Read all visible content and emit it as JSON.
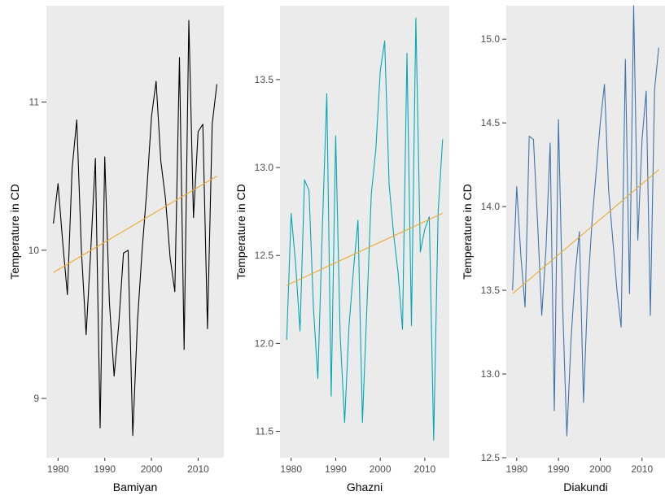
{
  "chart_data": [
    {
      "type": "line",
      "xlabel": "Bamiyan",
      "ylabel": "Temperature in CD",
      "xticks": [
        1980,
        1990,
        2000,
        2010
      ],
      "yticks": [
        9,
        10,
        11
      ],
      "xlim": [
        1977.5,
        2015.5
      ],
      "ylim": [
        8.6,
        11.65
      ],
      "grid": false,
      "colors": {
        "series": "#000000",
        "trend": "#F0A830",
        "panel": "#EBEBEB"
      },
      "series": [
        {
          "x": [
            1979,
            1980,
            1981,
            1982,
            1983,
            1984,
            1985,
            1986,
            1987,
            1988,
            1989,
            1990,
            1991,
            1992,
            1993,
            1994,
            1995,
            1996,
            1997,
            1998,
            1999,
            2000,
            2001,
            2002,
            2003,
            2004,
            2005,
            2006,
            2007,
            2008,
            2009,
            2010,
            2011,
            2012,
            2013,
            2014
          ],
          "values": [
            10.18,
            10.45,
            10.05,
            9.7,
            10.55,
            10.88,
            10.0,
            9.43,
            10.0,
            10.62,
            8.8,
            10.63,
            9.65,
            9.15,
            9.5,
            9.98,
            10.0,
            8.75,
            9.52,
            10.0,
            10.4,
            10.9,
            11.14,
            10.6,
            10.35,
            9.95,
            9.72,
            11.3,
            9.33,
            11.55,
            10.22,
            10.8,
            10.85,
            9.47,
            10.85,
            11.12
          ]
        },
        {
          "x": [
            1979,
            2014
          ],
          "values": [
            9.85,
            10.5
          ]
        }
      ]
    },
    {
      "type": "line",
      "xlabel": "Ghazni",
      "ylabel": "Temperature in CD",
      "xticks": [
        1980,
        1990,
        2000,
        2010
      ],
      "yticks": [
        "11.5",
        "12.0",
        "12.5",
        "13.0",
        "13.5"
      ],
      "xlim": [
        1977.5,
        2015.5
      ],
      "ylim": [
        11.35,
        13.92
      ],
      "grid": false,
      "colors": {
        "series": "#00A9B5",
        "trend": "#F0A830",
        "panel": "#EBEBEB"
      },
      "series": [
        {
          "x": [
            1979,
            1980,
            1981,
            1982,
            1983,
            1984,
            1985,
            1986,
            1987,
            1988,
            1989,
            1990,
            1991,
            1992,
            1993,
            1994,
            1995,
            1996,
            1997,
            1998,
            1999,
            2000,
            2001,
            2002,
            2003,
            2004,
            2005,
            2006,
            2007,
            2008,
            2009,
            2010,
            2011,
            2012,
            2013,
            2014
          ],
          "values": [
            12.02,
            12.74,
            12.45,
            12.07,
            12.93,
            12.87,
            12.2,
            11.8,
            12.65,
            13.42,
            11.7,
            13.18,
            12.05,
            11.55,
            12.1,
            12.42,
            12.7,
            11.55,
            12.2,
            12.85,
            13.1,
            13.55,
            13.72,
            12.9,
            12.62,
            12.4,
            12.08,
            13.65,
            12.1,
            13.85,
            12.52,
            12.65,
            12.72,
            11.45,
            12.75,
            13.16
          ]
        },
        {
          "x": [
            1979,
            2014
          ],
          "values": [
            12.33,
            12.74
          ]
        }
      ]
    },
    {
      "type": "line",
      "xlabel": "Diakundi",
      "ylabel": "Temperature in CD",
      "xticks": [
        1980,
        1990,
        2000,
        2010
      ],
      "yticks": [
        "12.5",
        "13.0",
        "13.5",
        "14.0",
        "14.5",
        "15.0"
      ],
      "xlim": [
        1977.5,
        2015.5
      ],
      "ylim": [
        12.5,
        15.2
      ],
      "grid": false,
      "colors": {
        "series": "#3E74AA",
        "trend": "#F0A830",
        "panel": "#EBEBEB"
      },
      "series": [
        {
          "x": [
            1979,
            1980,
            1981,
            1982,
            1983,
            1984,
            1985,
            1986,
            1987,
            1988,
            1989,
            1990,
            1991,
            1992,
            1993,
            1994,
            1995,
            1996,
            1997,
            1998,
            1999,
            2000,
            2001,
            2002,
            2003,
            2004,
            2005,
            2006,
            2007,
            2008,
            2009,
            2010,
            2011,
            2012,
            2013,
            2014
          ],
          "values": [
            13.5,
            14.12,
            13.7,
            13.4,
            14.42,
            14.4,
            13.9,
            13.35,
            13.75,
            14.38,
            12.78,
            14.52,
            13.4,
            12.63,
            13.2,
            13.6,
            13.85,
            12.83,
            13.5,
            13.9,
            14.2,
            14.5,
            14.73,
            14.1,
            13.8,
            13.5,
            13.28,
            14.88,
            13.48,
            15.2,
            13.8,
            14.4,
            14.69,
            13.35,
            14.7,
            14.95
          ]
        },
        {
          "x": [
            1979,
            2014
          ],
          "values": [
            13.48,
            14.22
          ]
        }
      ]
    }
  ]
}
